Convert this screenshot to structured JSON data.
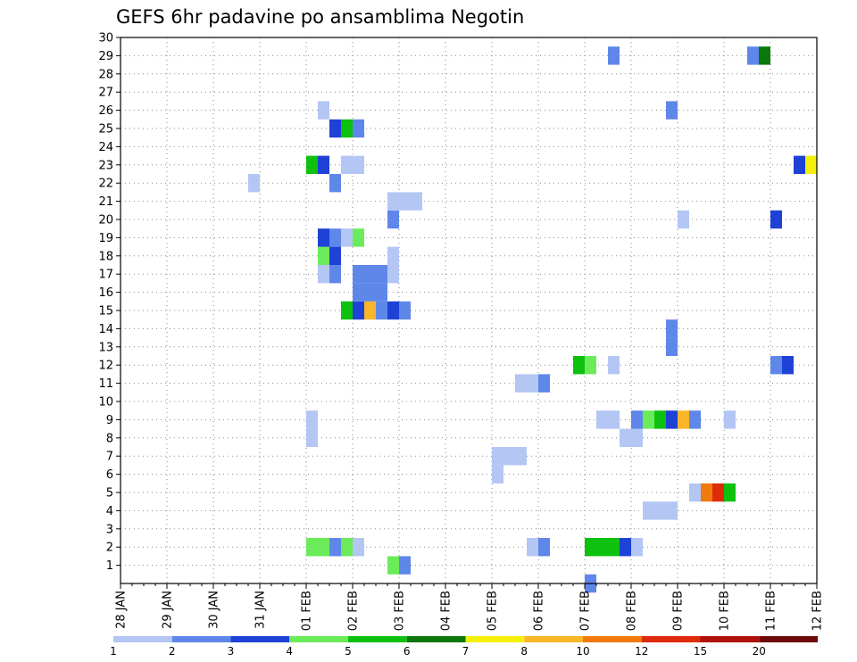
{
  "chart_data": {
    "type": "heatmap",
    "title": "GEFS 6hr padavine po ansamblima Negotin",
    "xlabel": "",
    "ylabel": "",
    "x_tick_labels": [
      "28 JAN",
      "29 JAN",
      "30 JAN",
      "31 JAN",
      "01 FEB",
      "02 FEB",
      "03 FEB",
      "04 FEB",
      "05 FEB",
      "06 FEB",
      "07 FEB",
      "08 FEB",
      "09 FEB",
      "10 FEB",
      "11 FEB",
      "12 FEB"
    ],
    "x_unit": "6-hour step (4 per day)",
    "xlim": [
      0,
      60
    ],
    "y_tick_labels": [
      "1",
      "2",
      "3",
      "4",
      "5",
      "6",
      "7",
      "8",
      "9",
      "10",
      "11",
      "12",
      "13",
      "14",
      "15",
      "16",
      "17",
      "18",
      "19",
      "20",
      "21",
      "22",
      "23",
      "24",
      "25",
      "26",
      "27",
      "28",
      "29",
      "30"
    ],
    "ylim": [
      0,
      30
    ],
    "grid": true,
    "legend": {
      "position": "bottom",
      "bins": [
        {
          "color": "#b4c6f4",
          "label": "1"
        },
        {
          "color": "#5f87ea",
          "label": "2"
        },
        {
          "color": "#1e41d6",
          "label": "3"
        },
        {
          "color": "#6ceb5a",
          "label": "4"
        },
        {
          "color": "#0ec10e",
          "label": "5"
        },
        {
          "color": "#0a780a",
          "label": "6"
        },
        {
          "color": "#f5f00a",
          "label": "7"
        },
        {
          "color": "#fbb529",
          "label": "8"
        },
        {
          "color": "#f27a0c",
          "label": "10"
        },
        {
          "color": "#dd2b0b",
          "label": "12"
        },
        {
          "color": "#b0120b",
          "label": "15"
        },
        {
          "color": "#6e0a0a",
          "label": "20"
        }
      ]
    },
    "cells_note": "each cell: member (y), 6-hour step index from 28 JAN 00UTC (x), precipitation legend bin index (v)",
    "cells": [
      {
        "y": 1,
        "x": 23.5,
        "v": 3
      },
      {
        "y": 1,
        "x": 24.5,
        "v": 1
      },
      {
        "y": 2,
        "x": 16.5,
        "v": 3
      },
      {
        "y": 2,
        "x": 17.5,
        "v": 3
      },
      {
        "y": 2,
        "x": 18.5,
        "v": 1
      },
      {
        "y": 2,
        "x": 19.5,
        "v": 3
      },
      {
        "y": 2,
        "x": 20.5,
        "v": 0
      },
      {
        "y": 2,
        "x": 35.5,
        "v": 0
      },
      {
        "y": 2,
        "x": 36.5,
        "v": 1
      },
      {
        "y": 2,
        "x": 40.5,
        "v": 4
      },
      {
        "y": 2,
        "x": 41.5,
        "v": 4
      },
      {
        "y": 2,
        "x": 42.5,
        "v": 4
      },
      {
        "y": 2,
        "x": 43.5,
        "v": 2
      },
      {
        "y": 2,
        "x": 44.5,
        "v": 0
      },
      {
        "y": 4,
        "x": 45.5,
        "v": 0
      },
      {
        "y": 4,
        "x": 46.5,
        "v": 0
      },
      {
        "y": 4,
        "x": 47.5,
        "v": 0
      },
      {
        "y": 5,
        "x": 49.5,
        "v": 0
      },
      {
        "y": 5,
        "x": 50.5,
        "v": 8
      },
      {
        "y": 5,
        "x": 51.5,
        "v": 9
      },
      {
        "y": 5,
        "x": 52.5,
        "v": 4
      },
      {
        "y": 6,
        "x": 32.5,
        "v": 0
      },
      {
        "y": 7,
        "x": 32.5,
        "v": 0
      },
      {
        "y": 7,
        "x": 33.5,
        "v": 0
      },
      {
        "y": 7,
        "x": 34.5,
        "v": 0
      },
      {
        "y": 8,
        "x": 16.5,
        "v": 0
      },
      {
        "y": 8,
        "x": 43.5,
        "v": 0
      },
      {
        "y": 8,
        "x": 44.5,
        "v": 0
      },
      {
        "y": 9,
        "x": 16.5,
        "v": 0
      },
      {
        "y": 9,
        "x": 41.5,
        "v": 0
      },
      {
        "y": 9,
        "x": 42.5,
        "v": 0
      },
      {
        "y": 9,
        "x": 44.5,
        "v": 1
      },
      {
        "y": 9,
        "x": 45.5,
        "v": 3
      },
      {
        "y": 9,
        "x": 46.5,
        "v": 4
      },
      {
        "y": 9,
        "x": 47.5,
        "v": 2
      },
      {
        "y": 9,
        "x": 48.5,
        "v": 7
      },
      {
        "y": 9,
        "x": 49.5,
        "v": 1
      },
      {
        "y": 9,
        "x": 52.5,
        "v": 0
      },
      {
        "y": 11,
        "x": 34.5,
        "v": 0
      },
      {
        "y": 11,
        "x": 35.5,
        "v": 0
      },
      {
        "y": 11,
        "x": 36.5,
        "v": 1
      },
      {
        "y": 12,
        "x": 39.5,
        "v": 4
      },
      {
        "y": 12,
        "x": 40.5,
        "v": 3
      },
      {
        "y": 12,
        "x": 42.5,
        "v": 0
      },
      {
        "y": 12,
        "x": 56.5,
        "v": 1
      },
      {
        "y": 12,
        "x": 57.5,
        "v": 2
      },
      {
        "y": 13,
        "x": 47.5,
        "v": 1
      },
      {
        "y": 14,
        "x": 47.5,
        "v": 1
      },
      {
        "y": 15,
        "x": 19.5,
        "v": 4
      },
      {
        "y": 15,
        "x": 20.5,
        "v": 2
      },
      {
        "y": 15,
        "x": 21.5,
        "v": 7
      },
      {
        "y": 15,
        "x": 22.5,
        "v": 1
      },
      {
        "y": 15,
        "x": 23.5,
        "v": 2
      },
      {
        "y": 15,
        "x": 24.5,
        "v": 1
      },
      {
        "y": 16,
        "x": 20.5,
        "v": 1
      },
      {
        "y": 16,
        "x": 21.5,
        "v": 1
      },
      {
        "y": 16,
        "x": 22.5,
        "v": 1
      },
      {
        "y": 17,
        "x": 17.5,
        "v": 0
      },
      {
        "y": 17,
        "x": 18.5,
        "v": 1
      },
      {
        "y": 17,
        "x": 20.5,
        "v": 1
      },
      {
        "y": 17,
        "x": 21.5,
        "v": 1
      },
      {
        "y": 17,
        "x": 22.5,
        "v": 1
      },
      {
        "y": 17,
        "x": 23.5,
        "v": 0
      },
      {
        "y": 18,
        "x": 17.5,
        "v": 3
      },
      {
        "y": 18,
        "x": 18.5,
        "v": 2
      },
      {
        "y": 18,
        "x": 23.5,
        "v": 0
      },
      {
        "y": 19,
        "x": 17.5,
        "v": 2
      },
      {
        "y": 19,
        "x": 18.5,
        "v": 1
      },
      {
        "y": 19,
        "x": 19.5,
        "v": 0
      },
      {
        "y": 19,
        "x": 20.5,
        "v": 3
      },
      {
        "y": 20,
        "x": 23.5,
        "v": 1
      },
      {
        "y": 20,
        "x": 48.5,
        "v": 0
      },
      {
        "y": 20,
        "x": 56.5,
        "v": 2
      },
      {
        "y": 21,
        "x": 23.5,
        "v": 0
      },
      {
        "y": 21,
        "x": 24.5,
        "v": 0
      },
      {
        "y": 21,
        "x": 25.5,
        "v": 0
      },
      {
        "y": 22,
        "x": 11.5,
        "v": 0
      },
      {
        "y": 22,
        "x": 18.5,
        "v": 1
      },
      {
        "y": 23,
        "x": 16.5,
        "v": 4
      },
      {
        "y": 23,
        "x": 17.5,
        "v": 2
      },
      {
        "y": 23,
        "x": 19.5,
        "v": 0
      },
      {
        "y": 23,
        "x": 20.5,
        "v": 0
      },
      {
        "y": 23,
        "x": 58.5,
        "v": 2
      },
      {
        "y": 23,
        "x": 59.5,
        "v": 6
      },
      {
        "y": 25,
        "x": 18.5,
        "v": 2
      },
      {
        "y": 25,
        "x": 19.5,
        "v": 4
      },
      {
        "y": 25,
        "x": 20.5,
        "v": 1
      },
      {
        "y": 26,
        "x": 17.5,
        "v": 0
      },
      {
        "y": 26,
        "x": 47.5,
        "v": 1
      },
      {
        "y": 29,
        "x": 42.5,
        "v": 1
      },
      {
        "y": 29,
        "x": 54.5,
        "v": 1
      },
      {
        "y": 29,
        "x": 55.5,
        "v": 5
      },
      {
        "y": 0,
        "x": 40.5,
        "v": 1
      }
    ]
  }
}
